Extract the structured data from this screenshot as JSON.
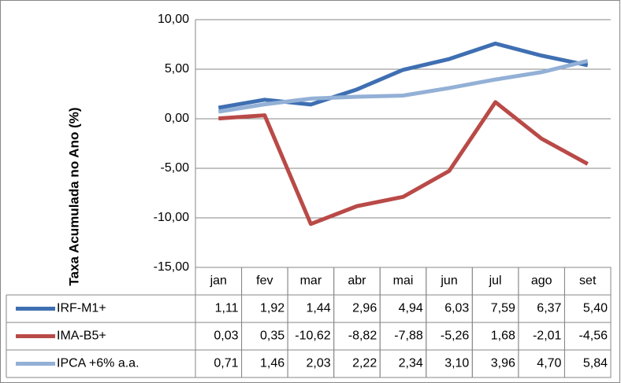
{
  "chart_data": {
    "type": "line",
    "y_label": "Taxa Acumulada no Ano (%)",
    "categories": [
      "jan",
      "fev",
      "mar",
      "abr",
      "mai",
      "jun",
      "jul",
      "ago",
      "set"
    ],
    "ylim": [
      -15,
      10
    ],
    "yticks": [
      {
        "value": -15,
        "label": "-15,00"
      },
      {
        "value": -10,
        "label": "-10,00"
      },
      {
        "value": -5,
        "label": "-5,00"
      },
      {
        "value": 0,
        "label": "0,00"
      },
      {
        "value": 5,
        "label": "5,00"
      },
      {
        "value": 10,
        "label": "10,00"
      }
    ],
    "grid": true,
    "series": [
      {
        "name": "IRF-M1+",
        "color": "#3f6fb2",
        "values": [
          1.11,
          1.92,
          1.44,
          2.96,
          4.94,
          6.03,
          7.59,
          6.37,
          5.4
        ],
        "value_labels": [
          "1,11",
          "1,92",
          "1,44",
          "2,96",
          "4,94",
          "6,03",
          "7,59",
          "6,37",
          "5,40"
        ]
      },
      {
        "name": "IMA-B5+",
        "color": "#b94a47",
        "values": [
          0.03,
          0.35,
          -10.62,
          -8.82,
          -7.88,
          -5.26,
          1.68,
          -2.01,
          -4.56
        ],
        "value_labels": [
          "0,03",
          "0,35",
          "-10,62",
          "-8,82",
          "-7,88",
          "-5,26",
          "1,68",
          "-2,01",
          "-4,56"
        ]
      },
      {
        "name": "IPCA +6% a.a.",
        "color": "#93b0d6",
        "values": [
          0.71,
          1.46,
          2.03,
          2.22,
          2.34,
          3.1,
          3.96,
          4.7,
          5.84
        ],
        "value_labels": [
          "0,71",
          "1,46",
          "2,03",
          "2,22",
          "2,34",
          "3,10",
          "3,96",
          "4,70",
          "5,84"
        ]
      }
    ]
  }
}
